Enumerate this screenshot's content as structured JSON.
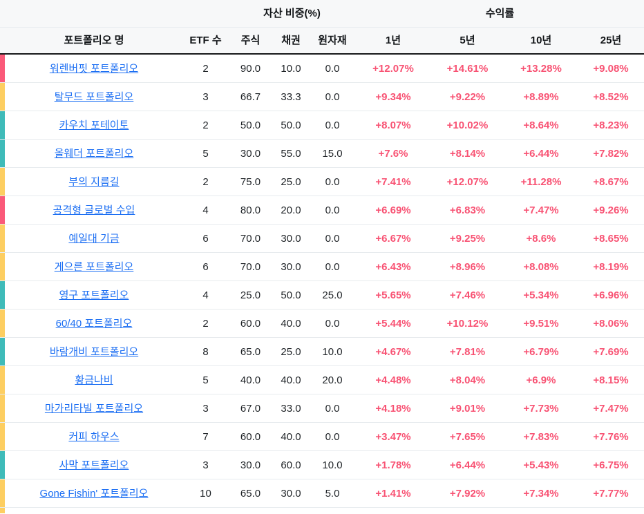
{
  "table": {
    "group_headers": {
      "assets": "자산 비중(%)",
      "returns": "수익률"
    },
    "columns": {
      "name": "포트폴리오 명",
      "etf_count": "ETF 수",
      "stock": "주식",
      "bond": "채권",
      "commodity": "원자재",
      "y1": "1년",
      "y5": "5년",
      "y10": "10년",
      "y25": "25년"
    },
    "colors": {
      "pink": "#fa5a79",
      "yellow": "#fdce61",
      "teal": "#3fbbb9",
      "link_blue": "#1b6ef3",
      "return_pink": "#f85273"
    },
    "rows": [
      {
        "bar": "pink",
        "name": "워렌버핏 포트폴리오",
        "etf_count": "2",
        "stock": "90.0",
        "bond": "10.0",
        "commodity": "0.0",
        "y1": "+12.07%",
        "y5": "+14.61%",
        "y10": "+13.28%",
        "y25": "+9.08%"
      },
      {
        "bar": "yellow",
        "name": "탈무드 포트폴리오",
        "etf_count": "3",
        "stock": "66.7",
        "bond": "33.3",
        "commodity": "0.0",
        "y1": "+9.34%",
        "y5": "+9.22%",
        "y10": "+8.89%",
        "y25": "+8.52%"
      },
      {
        "bar": "teal",
        "name": "카우치 포테이토",
        "etf_count": "2",
        "stock": "50.0",
        "bond": "50.0",
        "commodity": "0.0",
        "y1": "+8.07%",
        "y5": "+10.02%",
        "y10": "+8.64%",
        "y25": "+8.23%"
      },
      {
        "bar": "teal",
        "name": "올웨더 포트폴리오",
        "etf_count": "5",
        "stock": "30.0",
        "bond": "55.0",
        "commodity": "15.0",
        "y1": "+7.6%",
        "y5": "+8.14%",
        "y10": "+6.44%",
        "y25": "+7.82%"
      },
      {
        "bar": "yellow",
        "name": "부의 지름길",
        "etf_count": "2",
        "stock": "75.0",
        "bond": "25.0",
        "commodity": "0.0",
        "y1": "+7.41%",
        "y5": "+12.07%",
        "y10": "+11.28%",
        "y25": "+8.67%"
      },
      {
        "bar": "pink",
        "name": "공격형 글로벌 수입",
        "etf_count": "4",
        "stock": "80.0",
        "bond": "20.0",
        "commodity": "0.0",
        "y1": "+6.69%",
        "y5": "+6.83%",
        "y10": "+7.47%",
        "y25": "+9.26%"
      },
      {
        "bar": "yellow",
        "name": "예일대 기금",
        "etf_count": "6",
        "stock": "70.0",
        "bond": "30.0",
        "commodity": "0.0",
        "y1": "+6.67%",
        "y5": "+9.25%",
        "y10": "+8.6%",
        "y25": "+8.65%"
      },
      {
        "bar": "yellow",
        "name": "게으른 포트폴리오",
        "etf_count": "6",
        "stock": "70.0",
        "bond": "30.0",
        "commodity": "0.0",
        "y1": "+6.43%",
        "y5": "+8.96%",
        "y10": "+8.08%",
        "y25": "+8.19%"
      },
      {
        "bar": "teal",
        "name": "영구 포트폴리오",
        "etf_count": "4",
        "stock": "25.0",
        "bond": "50.0",
        "commodity": "25.0",
        "y1": "+5.65%",
        "y5": "+7.46%",
        "y10": "+5.34%",
        "y25": "+6.96%"
      },
      {
        "bar": "yellow",
        "name": "60/40 포트폴리오",
        "etf_count": "2",
        "stock": "60.0",
        "bond": "40.0",
        "commodity": "0.0",
        "y1": "+5.44%",
        "y5": "+10.12%",
        "y10": "+9.51%",
        "y25": "+8.06%"
      },
      {
        "bar": "teal",
        "name": "바람개비 포트폴리오",
        "etf_count": "8",
        "stock": "65.0",
        "bond": "25.0",
        "commodity": "10.0",
        "y1": "+4.67%",
        "y5": "+7.81%",
        "y10": "+6.79%",
        "y25": "+7.69%"
      },
      {
        "bar": "yellow",
        "name": "황금나비",
        "etf_count": "5",
        "stock": "40.0",
        "bond": "40.0",
        "commodity": "20.0",
        "y1": "+4.48%",
        "y5": "+8.04%",
        "y10": "+6.9%",
        "y25": "+8.15%"
      },
      {
        "bar": "yellow",
        "name": "마가리타빌 포트폴리오",
        "etf_count": "3",
        "stock": "67.0",
        "bond": "33.0",
        "commodity": "0.0",
        "y1": "+4.18%",
        "y5": "+9.01%",
        "y10": "+7.73%",
        "y25": "+7.47%"
      },
      {
        "bar": "yellow",
        "name": "커피 하우스",
        "etf_count": "7",
        "stock": "60.0",
        "bond": "40.0",
        "commodity": "0.0",
        "y1": "+3.47%",
        "y5": "+7.65%",
        "y10": "+7.83%",
        "y25": "+7.76%"
      },
      {
        "bar": "teal",
        "name": "사막 포트폴리오",
        "etf_count": "3",
        "stock": "30.0",
        "bond": "60.0",
        "commodity": "10.0",
        "y1": "+1.78%",
        "y5": "+6.44%",
        "y10": "+5.43%",
        "y25": "+6.75%"
      },
      {
        "bar": "yellow",
        "name": "Gone Fishin' 포트폴리오",
        "etf_count": "10",
        "stock": "65.0",
        "bond": "30.0",
        "commodity": "5.0",
        "y1": "+1.41%",
        "y5": "+7.92%",
        "y10": "+7.34%",
        "y25": "+7.77%"
      }
    ],
    "next_row_bar": "yellow"
  }
}
